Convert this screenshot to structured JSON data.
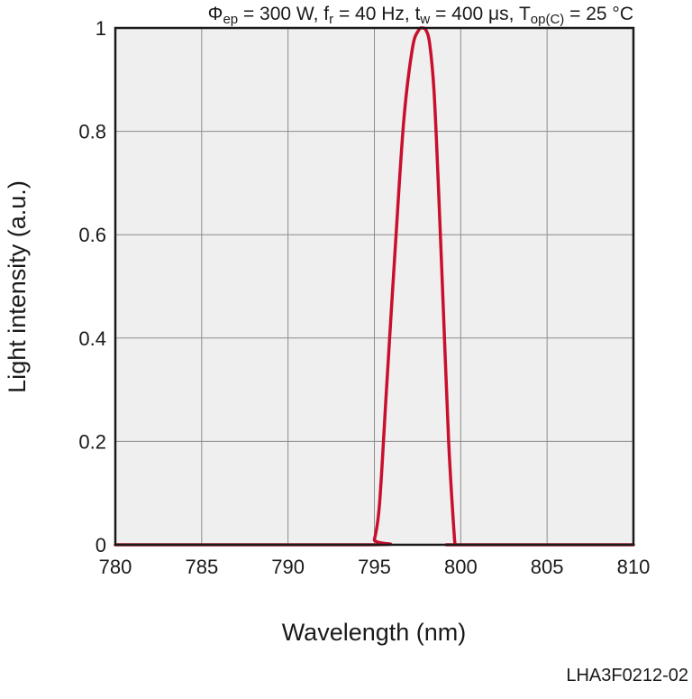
{
  "chart_data": {
    "type": "line",
    "title": "",
    "conditions": {
      "phi_symbol": "Φ",
      "phi_sub": "ep",
      "phi_value": " = 300 W, f",
      "fr_sub": "r",
      "fr_value": " = 40 Hz, t",
      "tw_sub": "w",
      "tw_value": " = 400 μs, T",
      "top_sub": "op(C)",
      "top_value": " = 25 °C"
    },
    "xlabel": "Wavelength (nm)",
    "ylabel": "Light intensity (a.u.)",
    "xlim": [
      780,
      810
    ],
    "ylim": [
      0,
      1
    ],
    "xticks": [
      780,
      785,
      790,
      795,
      800,
      805,
      810
    ],
    "xtick_labels": [
      "780",
      "785",
      "790",
      "795",
      "800",
      "805",
      "810"
    ],
    "yticks": [
      0,
      0.2,
      0.4,
      0.6,
      0.8,
      1
    ],
    "ytick_labels": [
      "0",
      "0.2",
      "0.4",
      "0.6",
      "0.8",
      "1"
    ],
    "grid": true,
    "series": [
      {
        "color": "#c8102e",
        "x": [
          780,
          794.8,
          795.0,
          795.3,
          795.7,
          796.2,
          796.7,
          797.2,
          797.55,
          797.8,
          798.0,
          798.2,
          798.45,
          798.7,
          799.0,
          799.3,
          799.6,
          799.7,
          800.0,
          810
        ],
        "y": [
          0,
          0,
          0.01,
          0.08,
          0.3,
          0.57,
          0.82,
          0.96,
          0.995,
          1.0,
          0.995,
          0.97,
          0.88,
          0.7,
          0.45,
          0.2,
          0.03,
          0.0,
          0.0,
          0.0
        ]
      }
    ],
    "figure_code": "LHA3F0212-02"
  }
}
